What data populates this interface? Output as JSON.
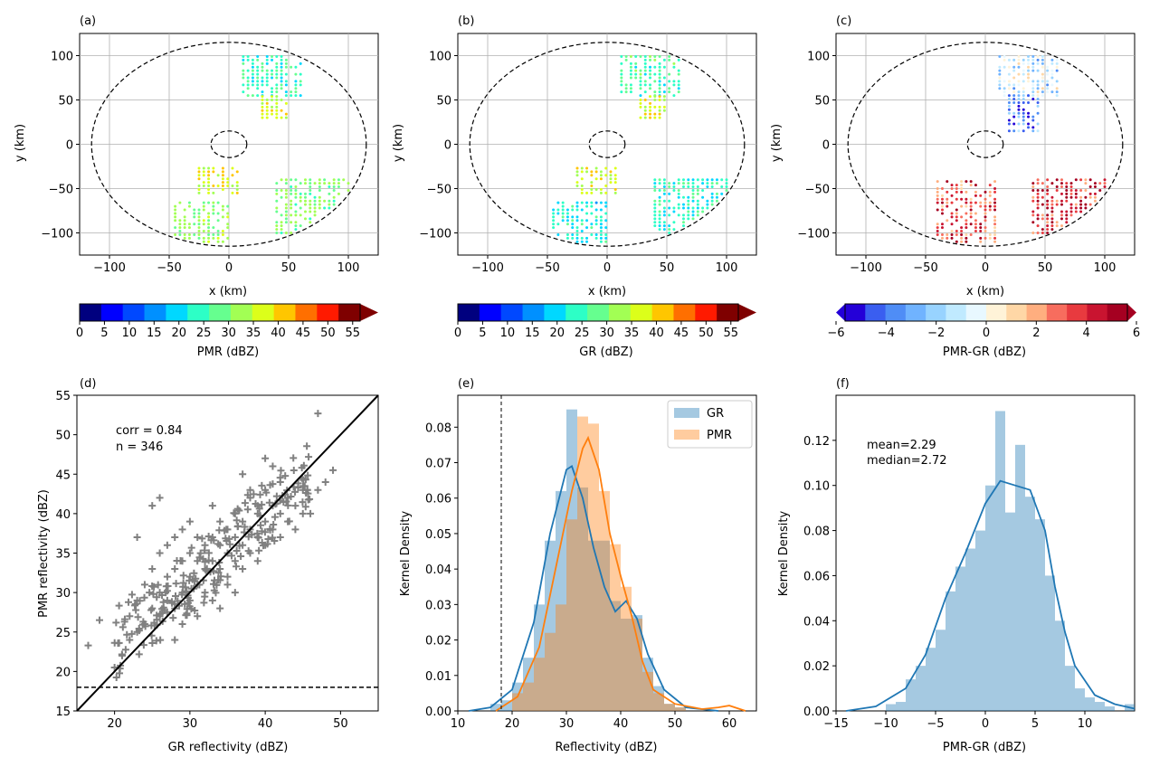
{
  "panels_map": [
    {
      "letter": "(a)",
      "xlabel": "x (km)",
      "ylabel": "y (km)",
      "xticks": [
        -100,
        -50,
        0,
        50,
        100
      ],
      "yticks": [
        -100,
        -50,
        0,
        50,
        100
      ],
      "cbar": {
        "label": "PMR (dBZ)",
        "ticks": [
          "0",
          "5",
          "10",
          "15",
          "20",
          "25",
          "30",
          "35",
          "40",
          "45",
          "50",
          "55"
        ],
        "colors": [
          "#00007f",
          "#0000ff",
          "#0048ff",
          "#0090ff",
          "#00d8ff",
          "#2dffc6",
          "#66ff8f",
          "#a2ff54",
          "#dcff1a",
          "#ffc600",
          "#ff6f00",
          "#ff1a00",
          "#7f0000"
        ]
      }
    },
    {
      "letter": "(b)",
      "xlabel": "x (km)",
      "ylabel": "y (km)",
      "xticks": [
        -100,
        -50,
        0,
        50,
        100
      ],
      "yticks": [
        -100,
        -50,
        0,
        50,
        100
      ],
      "cbar": {
        "label": "GR (dBZ)",
        "ticks": [
          "0",
          "5",
          "10",
          "15",
          "20",
          "25",
          "30",
          "35",
          "40",
          "45",
          "50",
          "55"
        ],
        "colors": [
          "#00007f",
          "#0000ff",
          "#0048ff",
          "#0090ff",
          "#00d8ff",
          "#2dffc6",
          "#66ff8f",
          "#a2ff54",
          "#dcff1a",
          "#ffc600",
          "#ff6f00",
          "#ff1a00",
          "#7f0000"
        ]
      }
    },
    {
      "letter": "(c)",
      "xlabel": "x (km)",
      "ylabel": "y (km)",
      "xticks": [
        -100,
        -50,
        0,
        50,
        100
      ],
      "yticks": [
        -100,
        -50,
        0,
        50,
        100
      ],
      "cbar": {
        "label": "PMR-GR (dBZ)",
        "ticks": [
          "−6",
          "−4",
          "−2",
          "0",
          "2",
          "4",
          "6"
        ],
        "colors": [
          "#2400d8",
          "#3a5ef0",
          "#4f8df6",
          "#70b3ff",
          "#98d3ff",
          "#c0eaff",
          "#e8f8ff",
          "#fff3d8",
          "#ffd7a6",
          "#ffae7f",
          "#f76d5e",
          "#e83a3f",
          "#c91430",
          "#a50021"
        ]
      }
    }
  ],
  "scatter": {
    "letter": "(d)",
    "xlabel": "GR reflectivity (dBZ)",
    "ylabel": "PMR reflectivity (dBZ)",
    "annot_corr": "corr = 0.84",
    "annot_n": "n = 346",
    "xticks": [
      20,
      30,
      40,
      50
    ],
    "yticks": [
      15,
      20,
      25,
      30,
      35,
      40,
      45,
      50,
      55
    ],
    "xlim": [
      15,
      55
    ],
    "ylim": [
      15,
      55
    ],
    "threshold": 18
  },
  "kde": {
    "letter": "(e)",
    "xlabel": "Reflectivity (dBZ)",
    "ylabel": "Kernel Density",
    "legend": [
      "GR",
      "PMR"
    ],
    "xticks": [
      10,
      20,
      30,
      40,
      50,
      60
    ],
    "yticks": [
      "0.00",
      "0.01",
      "0.02",
      "0.03",
      "0.04",
      "0.05",
      "0.06",
      "0.07",
      "0.08"
    ],
    "xlim": [
      10,
      65
    ],
    "ylim": [
      0,
      0.089
    ],
    "threshold": 18
  },
  "diff": {
    "letter": "(f)",
    "xlabel": "PMR-GR (dBZ)",
    "ylabel": "Kernel Density",
    "annot_mean": "mean=2.29",
    "annot_median": "median=2.72",
    "xticks": [
      "−15",
      "−10",
      "−5",
      "0",
      "5",
      "10"
    ],
    "yticks": [
      "0.00",
      "0.02",
      "0.04",
      "0.06",
      "0.08",
      "0.10",
      "0.12"
    ],
    "xlim": [
      -15,
      15
    ],
    "ylim": [
      0,
      0.14
    ]
  },
  "chart_data": [
    {
      "type": "heatmap",
      "panel": "(a)",
      "x_range_km": [
        -125,
        125
      ],
      "y_range_km": [
        -125,
        125
      ],
      "clusters": [
        {
          "x": [
            12,
            60
          ],
          "y": [
            55,
            100
          ],
          "value_dbz": 28
        },
        {
          "x": [
            28,
            50
          ],
          "y": [
            30,
            55
          ],
          "value_dbz": 42
        },
        {
          "x": [
            -25,
            10
          ],
          "y": [
            -55,
            -25
          ],
          "value_dbz": 44
        },
        {
          "x": [
            -45,
            0
          ],
          "y": [
            -110,
            -65
          ],
          "value_dbz": 36
        },
        {
          "x": [
            40,
            100
          ],
          "y": [
            -100,
            -40
          ],
          "value_dbz": 35
        }
      ]
    },
    {
      "type": "heatmap",
      "panel": "(b)",
      "x_range_km": [
        -125,
        125
      ],
      "y_range_km": [
        -125,
        125
      ],
      "clusters": [
        {
          "x": [
            12,
            60
          ],
          "y": [
            55,
            100
          ],
          "value_dbz": 30
        },
        {
          "x": [
            28,
            50
          ],
          "y": [
            30,
            55
          ],
          "value_dbz": 43
        },
        {
          "x": [
            -25,
            10
          ],
          "y": [
            -55,
            -25
          ],
          "value_dbz": 42
        },
        {
          "x": [
            -45,
            0
          ],
          "y": [
            -110,
            -65
          ],
          "value_dbz": 25
        },
        {
          "x": [
            40,
            100
          ],
          "y": [
            -100,
            -40
          ],
          "value_dbz": 27
        }
      ]
    },
    {
      "type": "heatmap",
      "panel": "(c)",
      "x_range_km": [
        -125,
        125
      ],
      "y_range_km": [
        -125,
        125
      ],
      "clusters": [
        {
          "x": [
            12,
            60
          ],
          "y": [
            55,
            100
          ],
          "value_dbz": -1
        },
        {
          "x": [
            20,
            45
          ],
          "y": [
            15,
            55
          ],
          "value_dbz": -4
        },
        {
          "x": [
            -40,
            10
          ],
          "y": [
            -110,
            -40
          ],
          "value_dbz": 5
        },
        {
          "x": [
            40,
            100
          ],
          "y": [
            -100,
            -40
          ],
          "value_dbz": 6
        }
      ]
    },
    {
      "type": "scatter",
      "panel": "(d)",
      "x_label": "GR reflectivity (dBZ)",
      "y_label": "PMR reflectivity (dBZ)",
      "n": 346,
      "correlation": 0.84,
      "points": [
        [
          16.5,
          23.3
        ],
        [
          18,
          26.5
        ],
        [
          20,
          20.5
        ],
        [
          21,
          22
        ],
        [
          22,
          24
        ],
        [
          22,
          27
        ],
        [
          23,
          25
        ],
        [
          23,
          29
        ],
        [
          24,
          26
        ],
        [
          24,
          31
        ],
        [
          25,
          28
        ],
        [
          25,
          33
        ],
        [
          26,
          27
        ],
        [
          26,
          30
        ],
        [
          26,
          35
        ],
        [
          27,
          29
        ],
        [
          27,
          32
        ],
        [
          27,
          36
        ],
        [
          28,
          28
        ],
        [
          28,
          33
        ],
        [
          28,
          37
        ],
        [
          29,
          30
        ],
        [
          29,
          34
        ],
        [
          29,
          38
        ],
        [
          30,
          29
        ],
        [
          30,
          32
        ],
        [
          30,
          35
        ],
        [
          30,
          39
        ],
        [
          31,
          31
        ],
        [
          31,
          34
        ],
        [
          31,
          37
        ],
        [
          32,
          30
        ],
        [
          32,
          33
        ],
        [
          32,
          36
        ],
        [
          33,
          34
        ],
        [
          33,
          37
        ],
        [
          33,
          41
        ],
        [
          34,
          33
        ],
        [
          34,
          36
        ],
        [
          34,
          39
        ],
        [
          35,
          32
        ],
        [
          35,
          35
        ],
        [
          35,
          38
        ],
        [
          36,
          34
        ],
        [
          36,
          37
        ],
        [
          36,
          40
        ],
        [
          37,
          36
        ],
        [
          37,
          39
        ],
        [
          38,
          35
        ],
        [
          38,
          38
        ],
        [
          38,
          42
        ],
        [
          39,
          37
        ],
        [
          39,
          40
        ],
        [
          40,
          36
        ],
        [
          40,
          39
        ],
        [
          40,
          43
        ],
        [
          41,
          38
        ],
        [
          41,
          41
        ],
        [
          42,
          37
        ],
        [
          42,
          40
        ],
        [
          42,
          44
        ],
        [
          43,
          39
        ],
        [
          43,
          42
        ],
        [
          44,
          38
        ],
        [
          44,
          41
        ],
        [
          45,
          40
        ],
        [
          45,
          43
        ],
        [
          46,
          40
        ],
        [
          47,
          43
        ],
        [
          47,
          52.7
        ],
        [
          48,
          44
        ],
        [
          49,
          45.5
        ],
        [
          23,
          37
        ],
        [
          25,
          41
        ],
        [
          26,
          42
        ],
        [
          28,
          24
        ],
        [
          29,
          26
        ],
        [
          31,
          27
        ],
        [
          33,
          29
        ],
        [
          35,
          31
        ],
        [
          37,
          33
        ],
        [
          39,
          34
        ],
        [
          40,
          47
        ],
        [
          41,
          46
        ],
        [
          38,
          43
        ],
        [
          37,
          45
        ],
        [
          34,
          28
        ],
        [
          36,
          30
        ]
      ],
      "identity_line": true,
      "threshold_y": 18
    },
    {
      "type": "bar",
      "panel": "(e)",
      "x_label": "Reflectivity (dBZ)",
      "y_label": "Kernel Density",
      "series": [
        {
          "name": "GR",
          "bin_edges": [
            12,
            14,
            16,
            18,
            20,
            22,
            24,
            26,
            28,
            30,
            32,
            34,
            36,
            38,
            40,
            42,
            44,
            46,
            48,
            50,
            52
          ],
          "values": [
            0.0,
            0.0,
            0.002,
            0.003,
            0.008,
            0.015,
            0.03,
            0.048,
            0.062,
            0.085,
            0.063,
            0.048,
            0.048,
            0.031,
            0.026,
            0.027,
            0.015,
            0.007,
            0.002,
            0.001
          ]
        },
        {
          "name": "PMR",
          "bin_edges": [
            18,
            20,
            22,
            24,
            26,
            28,
            30,
            32,
            34,
            36,
            38,
            40,
            42,
            44,
            46,
            48,
            50,
            52,
            54
          ],
          "values": [
            0.0,
            0.005,
            0.008,
            0.015,
            0.022,
            0.03,
            0.054,
            0.083,
            0.081,
            0.062,
            0.047,
            0.035,
            0.026,
            0.011,
            0.005,
            0.002,
            0.001,
            0.0
          ]
        }
      ],
      "kde_gr": [
        [
          12,
          0
        ],
        [
          16,
          0.001
        ],
        [
          20,
          0.006
        ],
        [
          24,
          0.025
        ],
        [
          27,
          0.05
        ],
        [
          30,
          0.068
        ],
        [
          31,
          0.069
        ],
        [
          33,
          0.06
        ],
        [
          35,
          0.046
        ],
        [
          37,
          0.035
        ],
        [
          39,
          0.028
        ],
        [
          41,
          0.031
        ],
        [
          43,
          0.026
        ],
        [
          45,
          0.016
        ],
        [
          48,
          0.006
        ],
        [
          52,
          0.001
        ],
        [
          58,
          0
        ]
      ],
      "kde_pmr": [
        [
          17,
          0
        ],
        [
          21,
          0.004
        ],
        [
          25,
          0.018
        ],
        [
          28,
          0.04
        ],
        [
          31,
          0.062
        ],
        [
          33,
          0.074
        ],
        [
          34,
          0.077
        ],
        [
          36,
          0.068
        ],
        [
          38,
          0.05
        ],
        [
          40,
          0.038
        ],
        [
          42,
          0.027
        ],
        [
          44,
          0.014
        ],
        [
          46,
          0.006
        ],
        [
          50,
          0.002
        ],
        [
          55,
          0.0005
        ],
        [
          58,
          0.001
        ],
        [
          60,
          0.0015
        ],
        [
          63,
          0
        ]
      ],
      "threshold_x": 18
    },
    {
      "type": "bar",
      "panel": "(f)",
      "x_label": "PMR-GR (dBZ)",
      "y_label": "Kernel Density",
      "mean": 2.29,
      "median": 2.72,
      "bin_edges": [
        -15,
        -14,
        -13,
        -12,
        -11,
        -10,
        -9,
        -8,
        -7,
        -6,
        -5,
        -4,
        -3,
        -2,
        -1,
        0,
        1,
        2,
        3,
        4,
        5,
        6,
        7,
        8,
        9,
        10,
        11,
        12,
        13,
        14,
        15
      ],
      "values": [
        0,
        0,
        0,
        0,
        0,
        0.003,
        0.004,
        0.014,
        0.02,
        0.028,
        0.036,
        0.053,
        0.064,
        0.072,
        0.08,
        0.1,
        0.133,
        0.088,
        0.118,
        0.095,
        0.085,
        0.06,
        0.04,
        0.02,
        0.01,
        0.006,
        0.004,
        0.002,
        0.0,
        0.003
      ],
      "kde": [
        [
          -14,
          0
        ],
        [
          -11,
          0.002
        ],
        [
          -8,
          0.01
        ],
        [
          -6,
          0.025
        ],
        [
          -4,
          0.05
        ],
        [
          -2,
          0.07
        ],
        [
          0,
          0.092
        ],
        [
          1.5,
          0.102
        ],
        [
          3,
          0.1
        ],
        [
          4.5,
          0.098
        ],
        [
          6,
          0.08
        ],
        [
          7,
          0.055
        ],
        [
          8,
          0.035
        ],
        [
          9,
          0.02
        ],
        [
          11,
          0.007
        ],
        [
          13,
          0.003
        ],
        [
          15,
          0.001
        ]
      ]
    }
  ]
}
